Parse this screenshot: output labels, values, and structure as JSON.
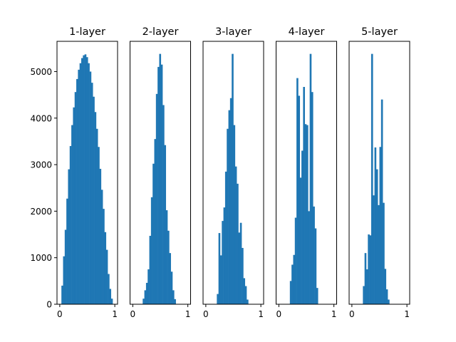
{
  "chart_data": [
    {
      "type": "histogram",
      "title": "1-layer",
      "color": "#1f77b4",
      "xlim": [
        -0.05,
        1.05
      ],
      "ylim": [
        0,
        5650
      ],
      "xticks": [
        0,
        1
      ],
      "xtick_labels": [
        "0",
        "1"
      ],
      "yticks": [
        0,
        1000,
        2000,
        3000,
        4000,
        5000
      ],
      "ytick_labels": [
        "0",
        "1000",
        "2000",
        "3000",
        "4000",
        "5000"
      ],
      "bins": [
        {
          "x0": 0.03,
          "x1": 0.06,
          "count": 400
        },
        {
          "x0": 0.06,
          "x1": 0.09,
          "count": 1030
        },
        {
          "x0": 0.09,
          "x1": 0.12,
          "count": 1600
        },
        {
          "x0": 0.12,
          "x1": 0.15,
          "count": 2270
        },
        {
          "x0": 0.15,
          "x1": 0.18,
          "count": 2900
        },
        {
          "x0": 0.18,
          "x1": 0.21,
          "count": 3400
        },
        {
          "x0": 0.21,
          "x1": 0.24,
          "count": 3850
        },
        {
          "x0": 0.24,
          "x1": 0.27,
          "count": 4230
        },
        {
          "x0": 0.27,
          "x1": 0.3,
          "count": 4560
        },
        {
          "x0": 0.3,
          "x1": 0.33,
          "count": 4840
        },
        {
          "x0": 0.33,
          "x1": 0.36,
          "count": 5040
        },
        {
          "x0": 0.36,
          "x1": 0.39,
          "count": 5180
        },
        {
          "x0": 0.39,
          "x1": 0.42,
          "count": 5290
        },
        {
          "x0": 0.42,
          "x1": 0.45,
          "count": 5350
        },
        {
          "x0": 0.45,
          "x1": 0.48,
          "count": 5370
        },
        {
          "x0": 0.48,
          "x1": 0.51,
          "count": 5310
        },
        {
          "x0": 0.51,
          "x1": 0.54,
          "count": 5180
        },
        {
          "x0": 0.54,
          "x1": 0.57,
          "count": 5000
        },
        {
          "x0": 0.57,
          "x1": 0.6,
          "count": 4760
        },
        {
          "x0": 0.6,
          "x1": 0.63,
          "count": 4460
        },
        {
          "x0": 0.63,
          "x1": 0.66,
          "count": 4130
        },
        {
          "x0": 0.66,
          "x1": 0.69,
          "count": 3770
        },
        {
          "x0": 0.69,
          "x1": 0.72,
          "count": 3380
        },
        {
          "x0": 0.72,
          "x1": 0.75,
          "count": 2910
        },
        {
          "x0": 0.75,
          "x1": 0.78,
          "count": 2460
        },
        {
          "x0": 0.78,
          "x1": 0.81,
          "count": 2050
        },
        {
          "x0": 0.81,
          "x1": 0.84,
          "count": 1550
        },
        {
          "x0": 0.84,
          "x1": 0.87,
          "count": 1170
        },
        {
          "x0": 0.87,
          "x1": 0.9,
          "count": 650
        },
        {
          "x0": 0.9,
          "x1": 0.93,
          "count": 330
        },
        {
          "x0": 0.93,
          "x1": 0.96,
          "count": 120
        }
      ]
    },
    {
      "type": "histogram",
      "title": "2-layer",
      "color": "#1f77b4",
      "xlim": [
        -0.05,
        1.05
      ],
      "ylim": [
        0,
        5650
      ],
      "xticks": [
        0,
        1
      ],
      "xtick_labels": [
        "0",
        "1"
      ],
      "bins": [
        {
          "x0": 0.18,
          "x1": 0.21,
          "count": 120
        },
        {
          "x0": 0.21,
          "x1": 0.24,
          "count": 300
        },
        {
          "x0": 0.24,
          "x1": 0.27,
          "count": 460
        },
        {
          "x0": 0.27,
          "x1": 0.3,
          "count": 750
        },
        {
          "x0": 0.3,
          "x1": 0.33,
          "count": 1470
        },
        {
          "x0": 0.33,
          "x1": 0.36,
          "count": 2300
        },
        {
          "x0": 0.36,
          "x1": 0.39,
          "count": 3020
        },
        {
          "x0": 0.39,
          "x1": 0.42,
          "count": 3550
        },
        {
          "x0": 0.42,
          "x1": 0.45,
          "count": 4520
        },
        {
          "x0": 0.45,
          "x1": 0.48,
          "count": 5100
        },
        {
          "x0": 0.48,
          "x1": 0.51,
          "count": 5380
        },
        {
          "x0": 0.51,
          "x1": 0.54,
          "count": 5150
        },
        {
          "x0": 0.54,
          "x1": 0.57,
          "count": 4280
        },
        {
          "x0": 0.57,
          "x1": 0.6,
          "count": 3420
        },
        {
          "x0": 0.6,
          "x1": 0.63,
          "count": 2020
        },
        {
          "x0": 0.63,
          "x1": 0.66,
          "count": 1580
        },
        {
          "x0": 0.66,
          "x1": 0.69,
          "count": 1100
        },
        {
          "x0": 0.69,
          "x1": 0.72,
          "count": 700
        },
        {
          "x0": 0.72,
          "x1": 0.75,
          "count": 300
        },
        {
          "x0": 0.75,
          "x1": 0.78,
          "count": 110
        }
      ]
    },
    {
      "type": "histogram",
      "title": "3-layer",
      "color": "#1f77b4",
      "xlim": [
        -0.05,
        1.05
      ],
      "ylim": [
        0,
        5650
      ],
      "xticks": [
        0,
        1
      ],
      "xtick_labels": [
        "0",
        "1"
      ],
      "bins": [
        {
          "x0": 0.2,
          "x1": 0.23,
          "count": 220
        },
        {
          "x0": 0.23,
          "x1": 0.26,
          "count": 1530
        },
        {
          "x0": 0.26,
          "x1": 0.29,
          "count": 1050
        },
        {
          "x0": 0.29,
          "x1": 0.32,
          "count": 1790
        },
        {
          "x0": 0.32,
          "x1": 0.35,
          "count": 2080
        },
        {
          "x0": 0.35,
          "x1": 0.38,
          "count": 2850
        },
        {
          "x0": 0.38,
          "x1": 0.41,
          "count": 3770
        },
        {
          "x0": 0.41,
          "x1": 0.44,
          "count": 4170
        },
        {
          "x0": 0.44,
          "x1": 0.47,
          "count": 4430
        },
        {
          "x0": 0.47,
          "x1": 0.5,
          "count": 5380
        },
        {
          "x0": 0.5,
          "x1": 0.53,
          "count": 3850
        },
        {
          "x0": 0.53,
          "x1": 0.56,
          "count": 2960
        },
        {
          "x0": 0.56,
          "x1": 0.59,
          "count": 2590
        },
        {
          "x0": 0.59,
          "x1": 0.62,
          "count": 1540
        },
        {
          "x0": 0.62,
          "x1": 0.65,
          "count": 1750
        },
        {
          "x0": 0.65,
          "x1": 0.68,
          "count": 1210
        },
        {
          "x0": 0.68,
          "x1": 0.71,
          "count": 560
        },
        {
          "x0": 0.71,
          "x1": 0.74,
          "count": 390
        },
        {
          "x0": 0.74,
          "x1": 0.77,
          "count": 100
        }
      ]
    },
    {
      "type": "histogram",
      "title": "4-layer",
      "color": "#1f77b4",
      "xlim": [
        -0.05,
        1.05
      ],
      "ylim": [
        0,
        5650
      ],
      "xticks": [
        0,
        1
      ],
      "xtick_labels": [
        "0",
        "1"
      ],
      "bins": [
        {
          "x0": 0.2,
          "x1": 0.23,
          "count": 500
        },
        {
          "x0": 0.23,
          "x1": 0.26,
          "count": 850
        },
        {
          "x0": 0.26,
          "x1": 0.29,
          "count": 1060
        },
        {
          "x0": 0.29,
          "x1": 0.32,
          "count": 1860
        },
        {
          "x0": 0.32,
          "x1": 0.35,
          "count": 4860
        },
        {
          "x0": 0.35,
          "x1": 0.38,
          "count": 4480
        },
        {
          "x0": 0.38,
          "x1": 0.41,
          "count": 2720
        },
        {
          "x0": 0.41,
          "x1": 0.44,
          "count": 3300
        },
        {
          "x0": 0.44,
          "x1": 0.47,
          "count": 4670
        },
        {
          "x0": 0.47,
          "x1": 0.5,
          "count": 3870
        },
        {
          "x0": 0.5,
          "x1": 0.53,
          "count": 3850
        },
        {
          "x0": 0.53,
          "x1": 0.56,
          "count": 2000
        },
        {
          "x0": 0.56,
          "x1": 0.59,
          "count": 5380
        },
        {
          "x0": 0.59,
          "x1": 0.62,
          "count": 4560
        },
        {
          "x0": 0.62,
          "x1": 0.65,
          "count": 2100
        },
        {
          "x0": 0.65,
          "x1": 0.68,
          "count": 1630
        },
        {
          "x0": 0.68,
          "x1": 0.71,
          "count": 350
        }
      ]
    },
    {
      "type": "histogram",
      "title": "5-layer",
      "color": "#1f77b4",
      "xlim": [
        -0.05,
        1.05
      ],
      "ylim": [
        0,
        5650
      ],
      "xticks": [
        0,
        1
      ],
      "xtick_labels": [
        "0",
        "1"
      ],
      "bins": [
        {
          "x0": 0.2,
          "x1": 0.23,
          "count": 390
        },
        {
          "x0": 0.23,
          "x1": 0.26,
          "count": 1100
        },
        {
          "x0": 0.26,
          "x1": 0.29,
          "count": 750
        },
        {
          "x0": 0.29,
          "x1": 0.32,
          "count": 1500
        },
        {
          "x0": 0.32,
          "x1": 0.35,
          "count": 1480
        },
        {
          "x0": 0.35,
          "x1": 0.38,
          "count": 5380
        },
        {
          "x0": 0.38,
          "x1": 0.41,
          "count": 2340
        },
        {
          "x0": 0.41,
          "x1": 0.44,
          "count": 3370
        },
        {
          "x0": 0.44,
          "x1": 0.47,
          "count": 2900
        },
        {
          "x0": 0.47,
          "x1": 0.5,
          "count": 2130
        },
        {
          "x0": 0.5,
          "x1": 0.53,
          "count": 3380
        },
        {
          "x0": 0.53,
          "x1": 0.56,
          "count": 4400
        },
        {
          "x0": 0.56,
          "x1": 0.59,
          "count": 2180
        },
        {
          "x0": 0.59,
          "x1": 0.62,
          "count": 760
        },
        {
          "x0": 0.62,
          "x1": 0.65,
          "count": 320
        },
        {
          "x0": 0.65,
          "x1": 0.68,
          "count": 100
        }
      ]
    }
  ]
}
